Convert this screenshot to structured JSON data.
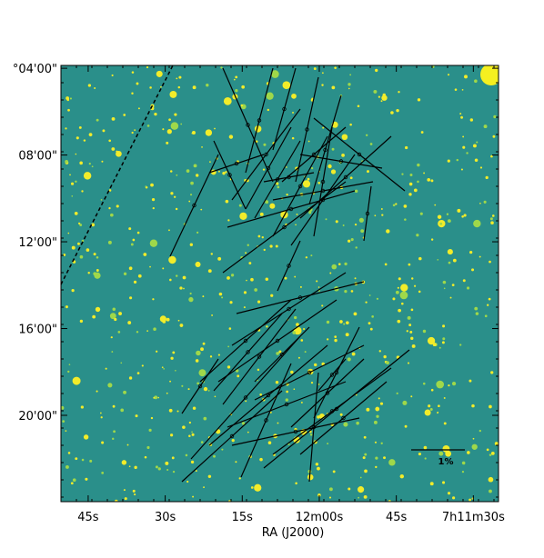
{
  "chart_data": {
    "type": "image",
    "xlabel": "RA (J2000)",
    "xlim": [
      110.3,
      25.1
    ],
    "xticks": [
      {
        "value": 105,
        "label": "45s"
      },
      {
        "value": 90,
        "label": "30s"
      },
      {
        "value": 75,
        "label": "15s"
      },
      {
        "value": 60,
        "label": "12m00s"
      },
      {
        "value": 45,
        "label": "45s"
      },
      {
        "value": 30,
        "label": "7h11m30s"
      }
    ],
    "ylim": [
      3.87,
      23.98
    ],
    "yticks": [
      {
        "value": 4,
        "label": "°04'00\""
      },
      {
        "value": 8,
        "label": "08'00\""
      },
      {
        "value": 12,
        "label": "12'00\""
      },
      {
        "value": 16,
        "label": "16'00\""
      },
      {
        "value": 20,
        "label": "20'00\""
      }
    ],
    "scale_label": "1%"
  }
}
